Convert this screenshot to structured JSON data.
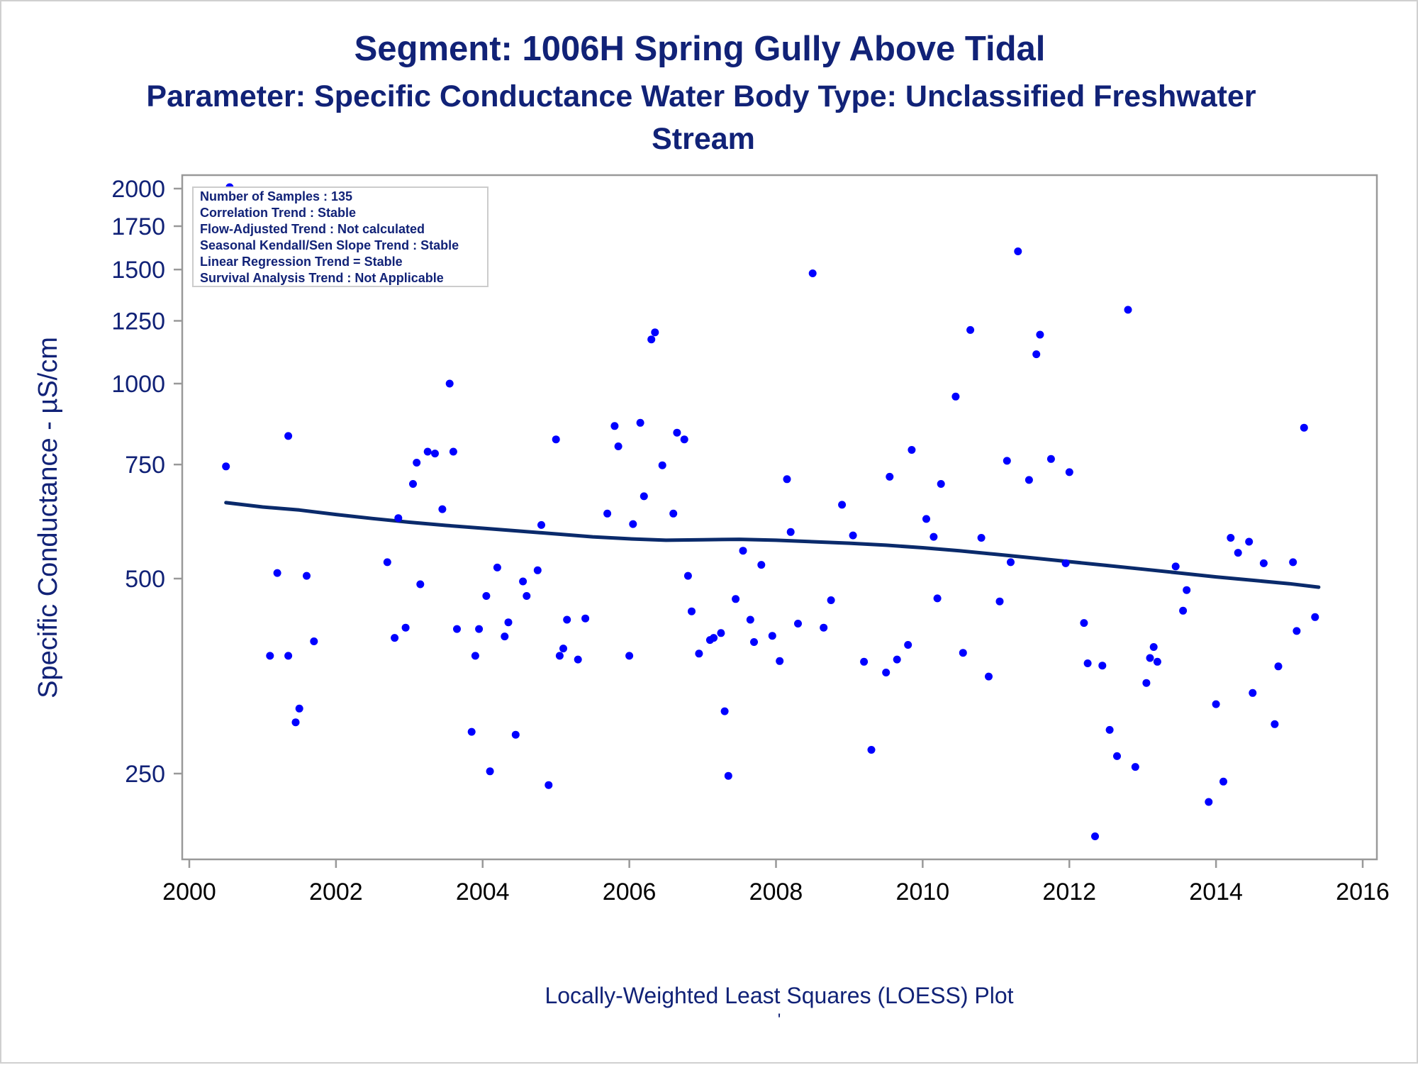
{
  "chart_data": {
    "type": "scatter",
    "title": "Segment: 1006H  Spring Gully Above Tidal",
    "subtitle_lines": [
      "Parameter: Specific Conductance   Water Body Type: Unclassified Freshwater",
      "Stream"
    ],
    "ylabel": "Specific Conductance -  µS/cm",
    "xlabel": "",
    "footnote": "Locally-Weighted Least Squares (LOESS) Plot",
    "footnote_mark": "'",
    "x_ticks": [
      2000,
      2002,
      2004,
      2006,
      2008,
      2010,
      2012,
      2014,
      2016
    ],
    "y_ticks": [
      250,
      500,
      750,
      1000,
      1250,
      1500,
      1750,
      2000
    ],
    "xlim": [
      2000,
      2016
    ],
    "ylim": [
      190,
      2050
    ],
    "y_scale": "log",
    "grid": false,
    "stats_box": {
      "placement": "top-left",
      "lines": [
        "Number of Samples : 135",
        "Correlation Trend : Stable",
        "Flow-Adjusted Trend : Not calculated",
        "Seasonal Kendall/Sen Slope Trend : Stable",
        "Linear Regression Trend = Stable",
        "Survival Analysis Trend : Not Applicable"
      ]
    },
    "point_color": "#0000ff",
    "line_color": "#0a2a6b",
    "text_color": "#112277",
    "points": [
      [
        2000.5,
        745
      ],
      [
        2000.55,
        2010
      ],
      [
        2000.6,
        1890
      ],
      [
        2001.1,
        380
      ],
      [
        2001.2,
        510
      ],
      [
        2001.35,
        380
      ],
      [
        2001.35,
        830
      ],
      [
        2001.45,
        300
      ],
      [
        2001.5,
        315
      ],
      [
        2001.6,
        505
      ],
      [
        2001.7,
        400
      ],
      [
        2002.7,
        530
      ],
      [
        2002.8,
        405
      ],
      [
        2002.85,
        620
      ],
      [
        2002.95,
        420
      ],
      [
        2003.05,
        700
      ],
      [
        2003.1,
        755
      ],
      [
        2003.15,
        490
      ],
      [
        2003.25,
        785
      ],
      [
        2003.35,
        780
      ],
      [
        2003.45,
        640
      ],
      [
        2003.55,
        1000
      ],
      [
        2003.6,
        785
      ],
      [
        2003.65,
        418
      ],
      [
        2003.85,
        290
      ],
      [
        2003.9,
        380
      ],
      [
        2003.95,
        418
      ],
      [
        2004.05,
        470
      ],
      [
        2004.1,
        252
      ],
      [
        2004.2,
        520
      ],
      [
        2004.3,
        407
      ],
      [
        2004.35,
        428
      ],
      [
        2004.45,
        287
      ],
      [
        2004.55,
        495
      ],
      [
        2004.6,
        470
      ],
      [
        2004.75,
        515
      ],
      [
        2004.8,
        605
      ],
      [
        2004.9,
        240
      ],
      [
        2005.0,
        820
      ],
      [
        2005.05,
        380
      ],
      [
        2005.1,
        390
      ],
      [
        2005.15,
        432
      ],
      [
        2005.3,
        375
      ],
      [
        2005.4,
        434
      ],
      [
        2005.7,
        630
      ],
      [
        2005.8,
        860
      ],
      [
        2005.85,
        800
      ],
      [
        2006.0,
        380
      ],
      [
        2006.05,
        607
      ],
      [
        2006.15,
        870
      ],
      [
        2006.2,
        670
      ],
      [
        2006.3,
        1170
      ],
      [
        2006.35,
        1200
      ],
      [
        2006.45,
        748
      ],
      [
        2006.6,
        630
      ],
      [
        2006.65,
        840
      ],
      [
        2006.75,
        820
      ],
      [
        2006.8,
        505
      ],
      [
        2006.85,
        445
      ],
      [
        2006.95,
        383
      ],
      [
        2007.1,
        402
      ],
      [
        2007.15,
        405
      ],
      [
        2007.25,
        412
      ],
      [
        2007.3,
        312
      ],
      [
        2007.35,
        248
      ],
      [
        2007.45,
        465
      ],
      [
        2007.55,
        552
      ],
      [
        2007.65,
        432
      ],
      [
        2007.7,
        399
      ],
      [
        2007.8,
        525
      ],
      [
        2007.95,
        408
      ],
      [
        2008.05,
        373
      ],
      [
        2008.15,
        712
      ],
      [
        2008.2,
        590
      ],
      [
        2008.3,
        426
      ],
      [
        2008.5,
        1480
      ],
      [
        2008.65,
        420
      ],
      [
        2008.75,
        463
      ],
      [
        2008.9,
        650
      ],
      [
        2009.05,
        583
      ],
      [
        2009.2,
        372
      ],
      [
        2009.3,
        272
      ],
      [
        2009.5,
        358
      ],
      [
        2009.55,
        718
      ],
      [
        2009.65,
        375
      ],
      [
        2009.8,
        395
      ],
      [
        2009.85,
        790
      ],
      [
        2010.05,
        618
      ],
      [
        2010.15,
        580
      ],
      [
        2010.2,
        466
      ],
      [
        2010.25,
        700
      ],
      [
        2010.45,
        955
      ],
      [
        2010.55,
        384
      ],
      [
        2010.65,
        1210
      ],
      [
        2010.8,
        578
      ],
      [
        2010.9,
        353
      ],
      [
        2011.05,
        461
      ],
      [
        2011.15,
        760
      ],
      [
        2011.2,
        530
      ],
      [
        2011.3,
        1600
      ],
      [
        2011.45,
        710
      ],
      [
        2011.55,
        1110
      ],
      [
        2011.6,
        1190
      ],
      [
        2011.75,
        765
      ],
      [
        2011.95,
        528
      ],
      [
        2012.0,
        730
      ],
      [
        2012.2,
        427
      ],
      [
        2012.25,
        370
      ],
      [
        2012.35,
        200
      ],
      [
        2012.45,
        367
      ],
      [
        2012.55,
        292
      ],
      [
        2012.65,
        266
      ],
      [
        2012.8,
        1300
      ],
      [
        2012.9,
        256
      ],
      [
        2013.05,
        345
      ],
      [
        2013.1,
        377
      ],
      [
        2013.15,
        392
      ],
      [
        2013.2,
        372
      ],
      [
        2013.45,
        522
      ],
      [
        2013.55,
        446
      ],
      [
        2013.6,
        480
      ],
      [
        2013.9,
        226
      ],
      [
        2014.0,
        320
      ],
      [
        2014.1,
        243
      ],
      [
        2014.2,
        578
      ],
      [
        2014.3,
        548
      ],
      [
        2014.45,
        570
      ],
      [
        2014.5,
        333
      ],
      [
        2014.65,
        528
      ],
      [
        2014.8,
        298
      ],
      [
        2014.85,
        366
      ],
      [
        2015.05,
        530
      ],
      [
        2015.1,
        415
      ],
      [
        2015.2,
        855
      ],
      [
        2015.35,
        436
      ]
    ],
    "loess": [
      [
        2000.5,
        655
      ],
      [
        2001.0,
        645
      ],
      [
        2001.5,
        638
      ],
      [
        2002.0,
        628
      ],
      [
        2002.5,
        619
      ],
      [
        2003.0,
        611
      ],
      [
        2003.5,
        604
      ],
      [
        2004.0,
        598
      ],
      [
        2004.5,
        592
      ],
      [
        2005.0,
        586
      ],
      [
        2005.5,
        580
      ],
      [
        2006.0,
        576
      ],
      [
        2006.5,
        573
      ],
      [
        2007.0,
        574
      ],
      [
        2007.5,
        575
      ],
      [
        2008.0,
        573
      ],
      [
        2008.5,
        570
      ],
      [
        2009.0,
        567
      ],
      [
        2009.5,
        563
      ],
      [
        2010.0,
        558
      ],
      [
        2010.5,
        552
      ],
      [
        2011.0,
        545
      ],
      [
        2011.5,
        538
      ],
      [
        2012.0,
        531
      ],
      [
        2012.5,
        524
      ],
      [
        2013.0,
        517
      ],
      [
        2013.5,
        510
      ],
      [
        2014.0,
        503
      ],
      [
        2014.5,
        497
      ],
      [
        2015.0,
        491
      ],
      [
        2015.4,
        485
      ]
    ]
  }
}
